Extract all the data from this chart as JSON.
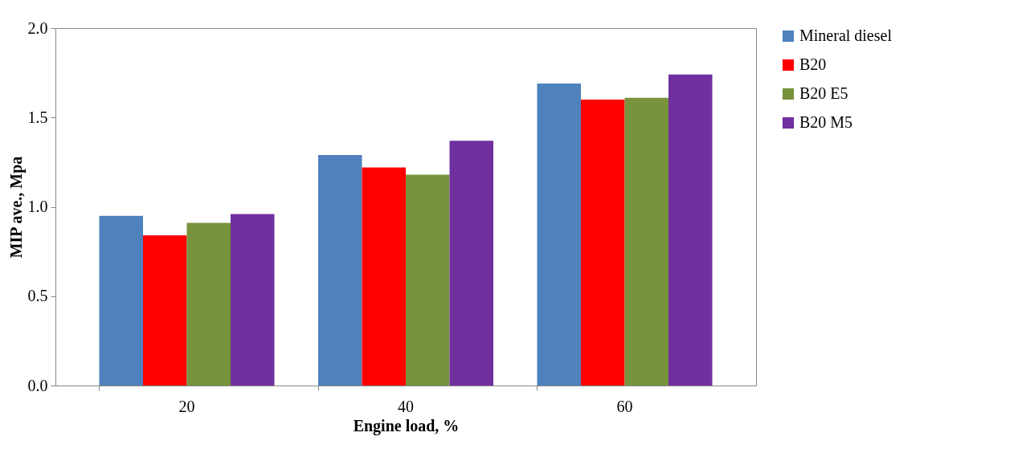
{
  "chart_data": {
    "type": "bar",
    "xlabel": "Engine load, %",
    "ylabel": "MIP ave., Mpa",
    "categories": [
      "20",
      "40",
      "60"
    ],
    "series": [
      {
        "name": "Mineral diesel",
        "color": "#4f81bd",
        "values": [
          0.95,
          1.29,
          1.69
        ]
      },
      {
        "name": "B20",
        "color": "#ff0000",
        "values": [
          0.84,
          1.22,
          1.6
        ]
      },
      {
        "name": "B20 E5",
        "color": "#77933c",
        "values": [
          0.91,
          1.18,
          1.61
        ]
      },
      {
        "name": "B20 M5",
        "color": "#7030a0",
        "values": [
          0.96,
          1.37,
          1.74
        ]
      }
    ],
    "ylim": [
      0,
      2
    ],
    "yticks": [
      {
        "value": 0,
        "label": "0.0"
      },
      {
        "value": 0.5,
        "label": "0.5"
      },
      {
        "value": 1,
        "label": "1.0"
      },
      {
        "value": 1.5,
        "label": "1.5"
      },
      {
        "value": 2,
        "label": "2.0"
      }
    ],
    "grid": false,
    "legend": "right"
  }
}
